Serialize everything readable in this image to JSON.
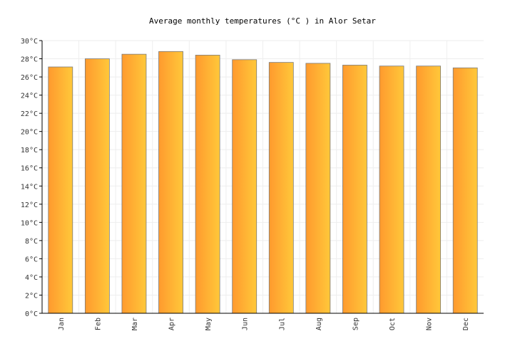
{
  "chart_data": {
    "type": "bar",
    "title": "Average monthly temperatures (°C ) in Alor Setar",
    "categories": [
      "Jan",
      "Feb",
      "Mar",
      "Apr",
      "May",
      "Jun",
      "Jul",
      "Aug",
      "Sep",
      "Oct",
      "Nov",
      "Dec"
    ],
    "values": [
      27.1,
      28.0,
      28.5,
      28.8,
      28.4,
      27.9,
      27.6,
      27.5,
      27.3,
      27.2,
      27.2,
      27.0
    ],
    "ylim": [
      0,
      30
    ],
    "yticks": [
      "0°C",
      "2°C",
      "4°C",
      "6°C",
      "8°C",
      "10°C",
      "12°C",
      "14°C",
      "16°C",
      "18°C",
      "20°C",
      "22°C",
      "24°C",
      "26°C",
      "28°C",
      "30°C"
    ],
    "grid": true,
    "bar_color_start": "#ff9a2e",
    "bar_color_end": "#ffc83a"
  }
}
